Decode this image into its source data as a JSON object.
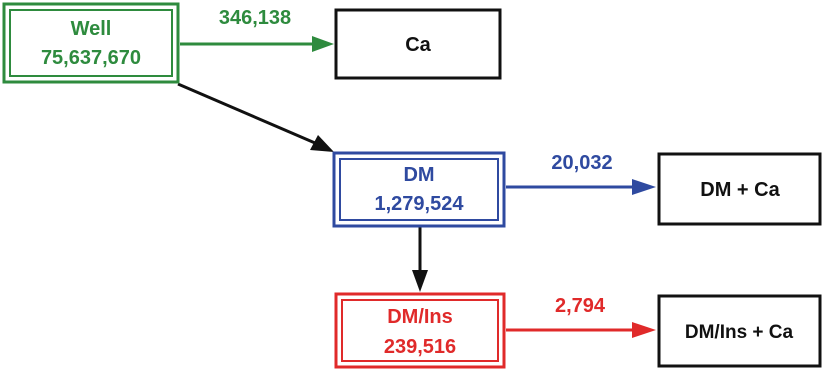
{
  "colors": {
    "green": "#2e8b3e",
    "blue": "#2f4aa0",
    "red": "#e02a2a",
    "black": "#111111"
  },
  "nodes": {
    "well": {
      "line1": "Well",
      "line2": "75,637,670"
    },
    "ca": {
      "label": "Ca"
    },
    "dm": {
      "line1": "DM",
      "line2": "1,279,524"
    },
    "dm_ca": {
      "label": "DM + Ca"
    },
    "dmins": {
      "line1": "DM/Ins",
      "line2": "239,516"
    },
    "dmins_ca": {
      "label": "DM/Ins + Ca"
    }
  },
  "edges": {
    "well_to_ca": {
      "value": "346,138"
    },
    "dm_to_dm_ca": {
      "value": "20,032"
    },
    "dmins_to_dmins_ca": {
      "value": "2,794"
    }
  }
}
